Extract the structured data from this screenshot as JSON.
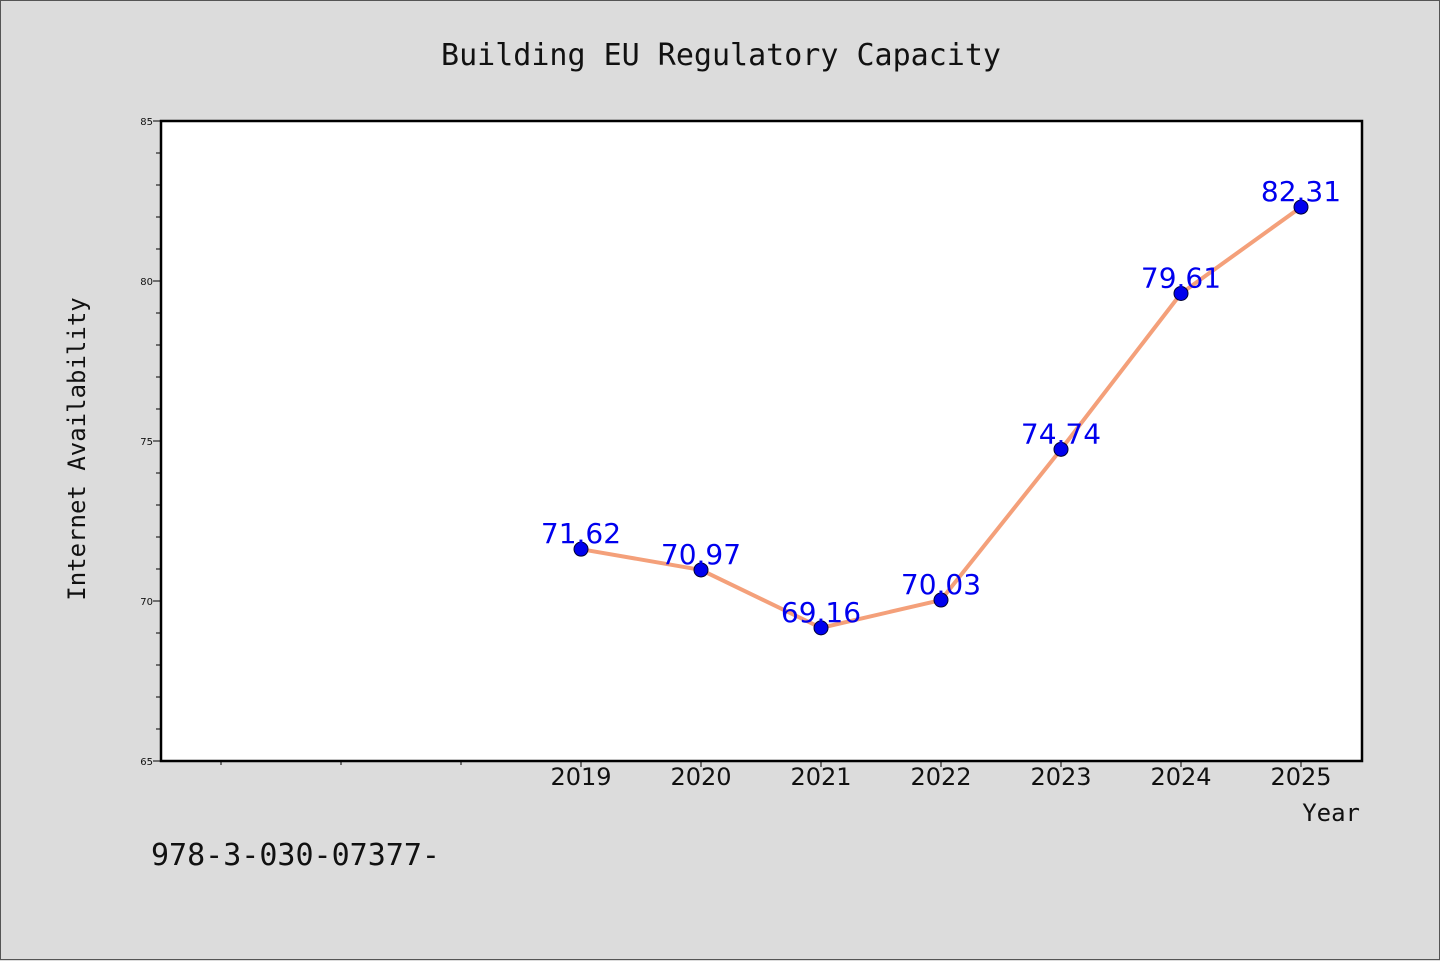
{
  "chart_data": {
    "type": "line",
    "title": "Building EU Regulatory Capacity",
    "xlabel": "Year",
    "ylabel": "Internet Availability",
    "x": [
      "2019",
      "2020",
      "2021",
      "2022",
      "2023",
      "2024",
      "2025"
    ],
    "series": [
      {
        "values": [
          71.62,
          70.97,
          69.16,
          70.03,
          74.74,
          79.61,
          82.31
        ],
        "labels": [
          "71.62",
          "70.97",
          "69.16",
          "70.03",
          "74.74",
          "79.61",
          "82.31"
        ]
      }
    ],
    "ylim": [
      65,
      85
    ],
    "yticks": [
      "65",
      "70",
      "75",
      "80",
      "85"
    ],
    "grid": false,
    "legend": "none"
  },
  "footer_text": "978-3-030-07377-",
  "colors": {
    "line": "#f4a07a",
    "marker": "#0000ee",
    "label": "#0000ee"
  }
}
